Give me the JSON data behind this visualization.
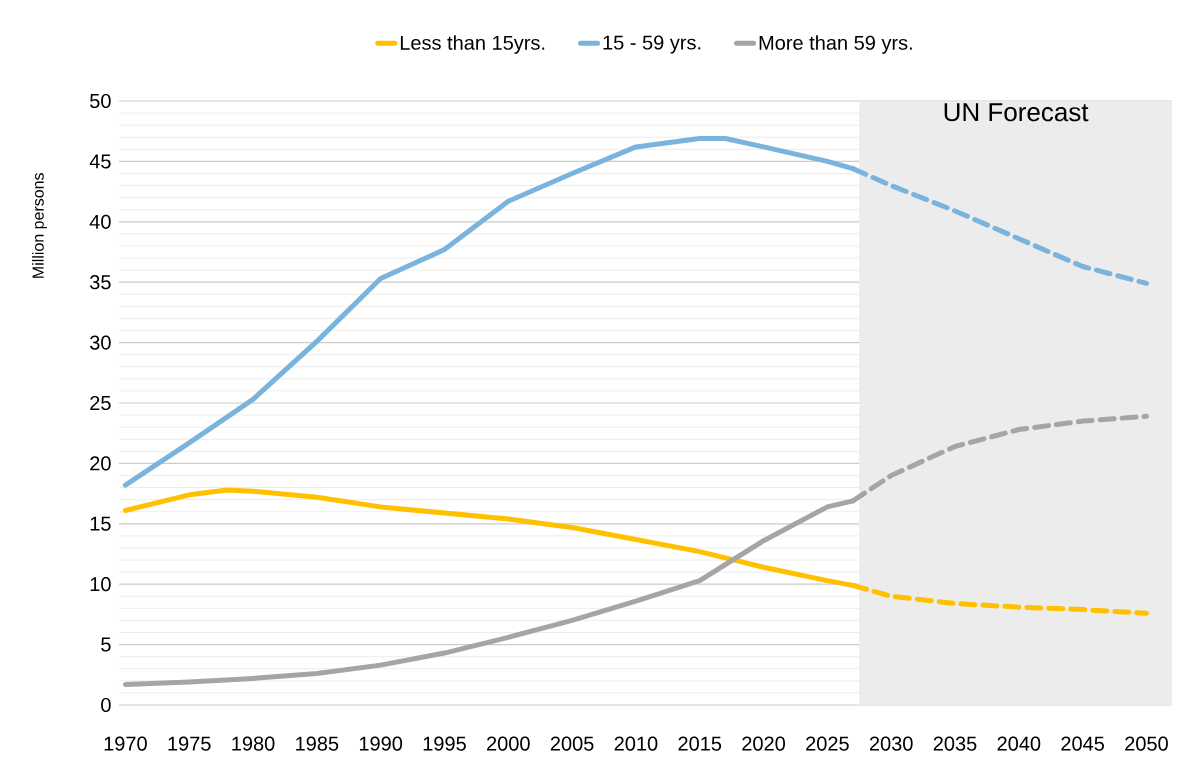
{
  "chart_data": {
    "type": "line",
    "ylabel": "Million persons",
    "xlim": [
      1969.5,
      2052
    ],
    "xticks": [
      1970,
      1975,
      1980,
      1985,
      1990,
      1995,
      2000,
      2005,
      2010,
      2015,
      2020,
      2025,
      2030,
      2035,
      2040,
      2045,
      2050
    ],
    "ylim": [
      0,
      50
    ],
    "yticks": [
      0,
      5,
      10,
      15,
      20,
      25,
      30,
      35,
      40,
      45,
      50
    ],
    "grid": "y",
    "legend": "top",
    "marker": "none",
    "bands": [
      {
        "axis": "x",
        "from": 2027.5,
        "to": 2052,
        "label": "UN Forecast",
        "color": "#ececec"
      }
    ],
    "series": [
      {
        "name": "Less than 15yrs.",
        "color": "#ffc000",
        "line_style": "solid",
        "x": [
          1970,
          1975,
          1978,
          1980,
          1985,
          1990,
          1995,
          2000,
          2005,
          2010,
          2015,
          2020,
          2025,
          2027
        ],
        "values": [
          16.1,
          17.4,
          17.8,
          17.7,
          17.2,
          16.4,
          15.9,
          15.4,
          14.7,
          13.7,
          12.7,
          11.4,
          10.3,
          9.9
        ]
      },
      {
        "name": "15 - 59 yrs.",
        "color": "#7ab4dc",
        "line_style": "solid",
        "x": [
          1970,
          1975,
          1980,
          1985,
          1990,
          1995,
          2000,
          2005,
          2010,
          2015,
          2017,
          2020,
          2025,
          2027
        ],
        "values": [
          18.2,
          21.7,
          25.3,
          30.1,
          35.3,
          37.7,
          41.7,
          44.0,
          46.2,
          46.9,
          46.9,
          46.2,
          45.0,
          44.4
        ]
      },
      {
        "name": "More than 59 yrs.",
        "color": "#a5a5a5",
        "line_style": "solid",
        "x": [
          1970,
          1975,
          1980,
          1985,
          1990,
          1995,
          2000,
          2005,
          2010,
          2015,
          2020,
          2025,
          2027
        ],
        "values": [
          1.7,
          1.9,
          2.2,
          2.6,
          3.3,
          4.3,
          5.6,
          7.0,
          8.6,
          10.3,
          13.6,
          16.4,
          16.9
        ]
      },
      {
        "color": "#ffc000",
        "line_style": "dashed",
        "x": [
          2027,
          2030,
          2035,
          2040,
          2045,
          2050
        ],
        "values": [
          9.9,
          9.0,
          8.4,
          8.1,
          7.9,
          7.6
        ]
      },
      {
        "color": "#7ab4dc",
        "line_style": "dashed",
        "x": [
          2027,
          2030,
          2035,
          2040,
          2045,
          2050
        ],
        "values": [
          44.4,
          43.0,
          40.9,
          38.6,
          36.3,
          34.9
        ]
      },
      {
        "color": "#a5a5a5",
        "line_style": "dashed",
        "x": [
          2027,
          2030,
          2035,
          2040,
          2045,
          2050
        ],
        "values": [
          16.9,
          19.0,
          21.4,
          22.8,
          23.5,
          23.9
        ]
      }
    ]
  }
}
